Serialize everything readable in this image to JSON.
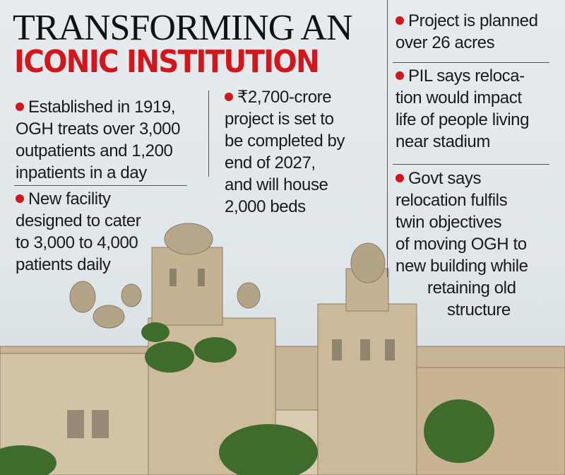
{
  "header": {
    "title_line1": "TRANSFORMING AN",
    "title_line2": "ICONIC INSTITUTION"
  },
  "left_column": [
    {
      "lines": [
        "Established in 1919,",
        "OGH treats over 3,000",
        "outpatients and 1,200",
        "inpatients in a day"
      ]
    },
    {
      "lines": [
        "New facility",
        "designed to cater",
        "to 3,000 to 4,000",
        "patients  daily"
      ]
    }
  ],
  "middle_column": [
    {
      "lines": [
        "₹2,700-crore",
        "project is set to",
        "be completed by",
        "end of 2027,",
        "and will house",
        "2,000 beds"
      ]
    }
  ],
  "right_column": [
    {
      "lines": [
        "Project is planned",
        "over 26 acres"
      ]
    },
    {
      "lines": [
        "PIL says reloca-",
        "tion would impact",
        "life of people living",
        "near stadium"
      ]
    },
    {
      "lines": [
        "Govt says",
        "relocation fulfils",
        "twin objectives",
        "of moving OGH to",
        "new building while",
        "retaining old",
        "structure"
      ]
    }
  ]
}
